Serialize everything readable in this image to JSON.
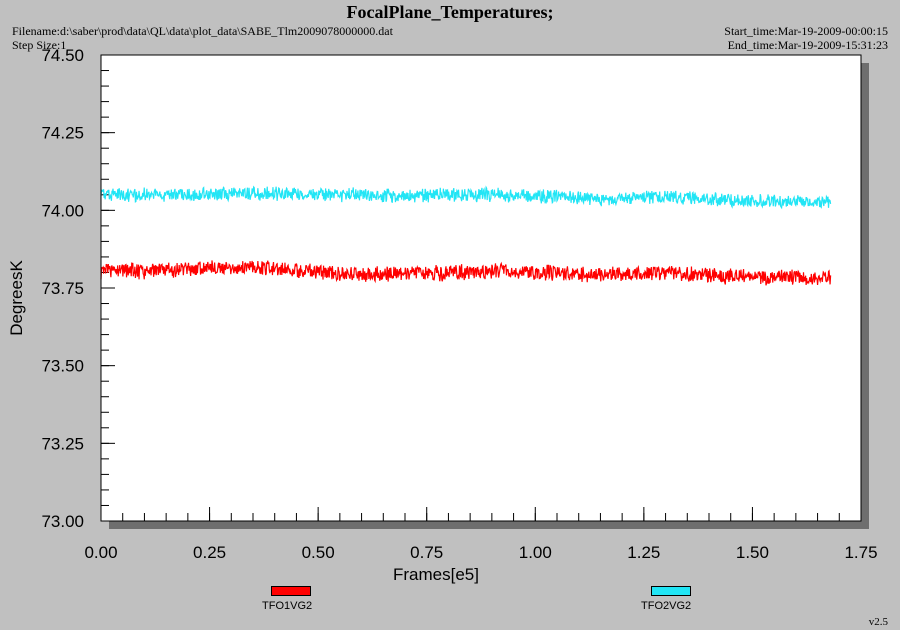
{
  "header": {
    "title": "FocalPlane_Temperatures;",
    "filename": "Filename:d:\\saber\\prod\\data\\QL\\data\\plot_data\\SABE_Tlm2009078000000.dat",
    "step_size": "Step Size:1",
    "start_time": "Start_time:Mar-19-2009-00:00:15",
    "end_time": "End_time:Mar-19-2009-15:31:23"
  },
  "version": "v2.5",
  "colors": {
    "background": "#c0c0c0",
    "plot_bg": "#ffffff",
    "series1": "#ff0000",
    "series2": "#22e5f5"
  },
  "chart_data": {
    "type": "line",
    "title": "FocalPlane_Temperatures;",
    "xlabel": "Frames[e5]",
    "ylabel": "DegreesK",
    "xlim": [
      0.0,
      1.75
    ],
    "ylim": [
      73.0,
      74.5
    ],
    "xticks": [
      "0.00",
      "0.25",
      "0.50",
      "0.75",
      "1.00",
      "1.25",
      "1.50",
      "1.75"
    ],
    "yticks": [
      "73.00",
      "73.25",
      "73.50",
      "73.75",
      "74.00",
      "74.25",
      "74.50"
    ],
    "grid": false,
    "legend_position": "bottom",
    "series": [
      {
        "name": "TFO1VG2",
        "color": "#ff0000",
        "x": [
          0.0,
          0.1,
          0.2,
          0.3,
          0.35,
          0.4,
          0.5,
          0.6,
          0.7,
          0.8,
          0.9,
          1.0,
          1.1,
          1.2,
          1.3,
          1.4,
          1.5,
          1.6,
          1.68
        ],
        "y_mean": [
          73.805,
          73.805,
          73.81,
          73.815,
          73.82,
          73.815,
          73.8,
          73.795,
          73.795,
          73.8,
          73.805,
          73.8,
          73.795,
          73.795,
          73.8,
          73.79,
          73.785,
          73.785,
          73.78
        ],
        "band_halfwidth": 0.028
      },
      {
        "name": "TFO2VG2",
        "color": "#22e5f5",
        "x": [
          0.0,
          0.1,
          0.2,
          0.3,
          0.4,
          0.5,
          0.6,
          0.7,
          0.8,
          0.9,
          1.0,
          1.1,
          1.15,
          1.2,
          1.3,
          1.4,
          1.5,
          1.6,
          1.68
        ],
        "y_mean": [
          74.05,
          74.05,
          74.05,
          74.055,
          74.055,
          74.05,
          74.05,
          74.045,
          74.05,
          74.05,
          74.045,
          74.04,
          74.035,
          74.04,
          74.045,
          74.035,
          74.03,
          74.03,
          74.025
        ],
        "band_halfwidth": 0.025
      }
    ]
  }
}
